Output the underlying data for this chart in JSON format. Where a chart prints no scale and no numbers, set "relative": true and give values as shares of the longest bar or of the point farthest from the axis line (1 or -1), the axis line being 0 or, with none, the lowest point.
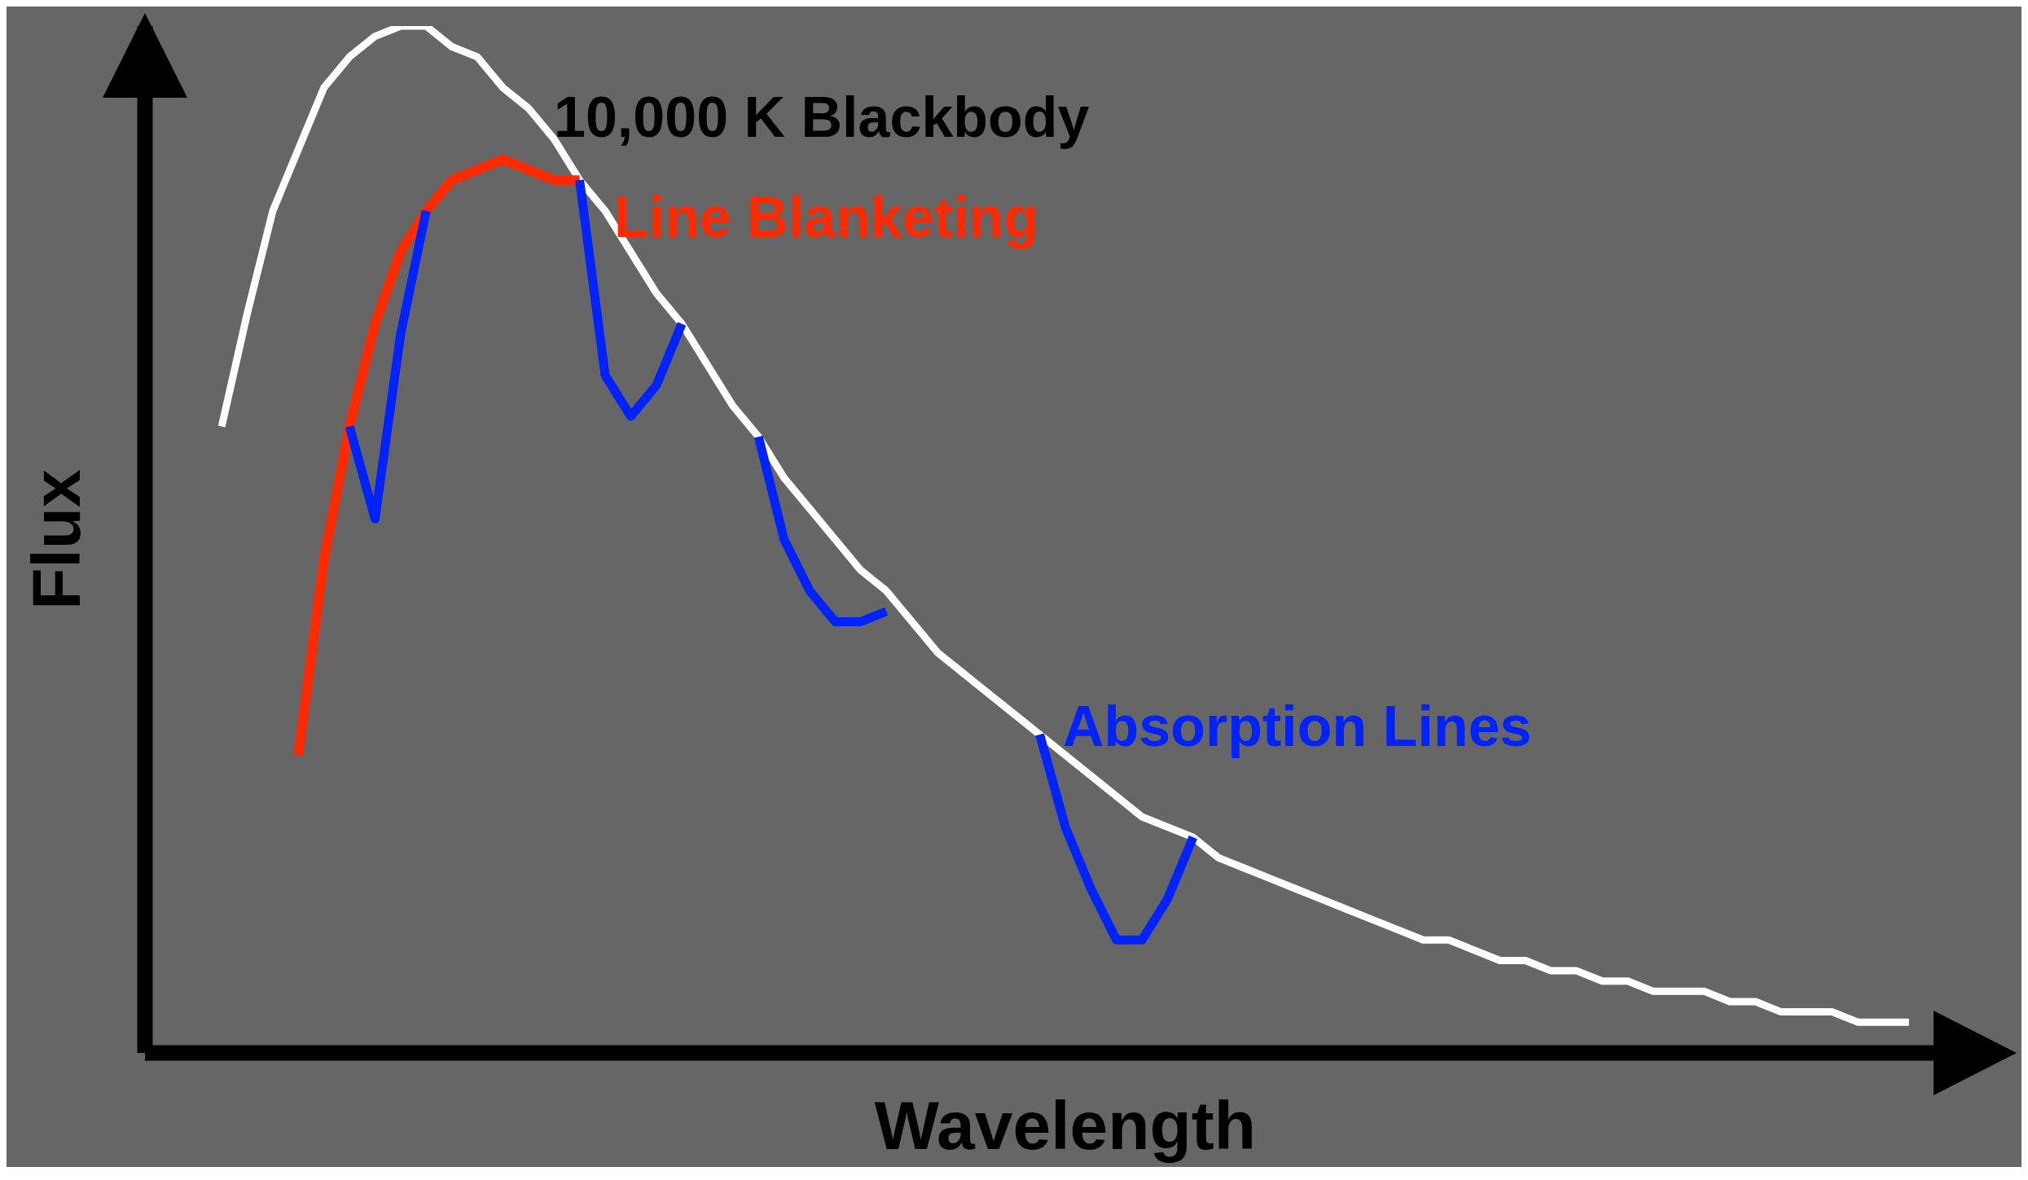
{
  "chart_data": {
    "type": "line",
    "relative": true,
    "xlabel": "Wavelength",
    "ylabel": "Flux",
    "legend": false,
    "grid": false,
    "marker": "none",
    "line_style": "solid",
    "categories": [
      null,
      null,
      null,
      null,
      null,
      null,
      null,
      null,
      null,
      null,
      null,
      null,
      null,
      null,
      null,
      null,
      null,
      null,
      null,
      null,
      null,
      null,
      null,
      null,
      null,
      null,
      null,
      null,
      null,
      null,
      null,
      null,
      null,
      null,
      null,
      null,
      null,
      null,
      null,
      null,
      null,
      null,
      null,
      null,
      null,
      null,
      null,
      null,
      null,
      null,
      null,
      null,
      null,
      null,
      null,
      null,
      null,
      null,
      null,
      null,
      null,
      null,
      null,
      null,
      null,
      null,
      null,
      null,
      null,
      null,
      null,
      null,
      null
    ],
    "series": [
      {
        "name": "10,000 K Blackbody",
        "color": "#ffffff",
        "values": [
          null,
          null,
          null,
          0.61,
          0.72,
          0.82,
          0.88,
          0.94,
          0.97,
          0.99,
          1.0,
          1.0,
          0.98,
          0.97,
          0.94,
          0.92,
          0.89,
          0.85,
          0.82,
          0.78,
          0.74,
          0.71,
          0.67,
          0.63,
          0.6,
          0.56,
          0.53,
          0.5,
          0.47,
          0.45,
          0.42,
          0.39,
          0.37,
          0.35,
          0.33,
          0.31,
          0.29,
          0.27,
          0.25,
          0.23,
          0.22,
          0.21,
          0.19,
          0.18,
          0.17,
          0.16,
          0.15,
          0.14,
          0.13,
          0.12,
          0.11,
          0.11,
          0.1,
          0.09,
          0.09,
          0.08,
          0.08,
          0.07,
          0.07,
          0.06,
          0.06,
          0.06,
          0.05,
          0.05,
          0.04,
          0.04,
          0.04,
          0.03,
          0.03,
          0.03,
          null,
          null,
          null
        ]
      },
      {
        "name": "Line Blanketing",
        "color": "#ff2a00",
        "values": [
          null,
          null,
          null,
          null,
          null,
          null,
          0.29,
          0.48,
          0.61,
          0.71,
          0.78,
          0.82,
          0.85,
          0.86,
          0.87,
          0.86,
          0.85,
          0.85,
          null,
          null,
          null,
          null,
          null,
          null,
          null,
          null,
          null,
          null,
          null,
          null,
          null,
          null,
          null,
          null,
          null,
          null,
          null,
          null,
          null,
          null,
          null,
          null,
          null,
          null,
          null,
          null,
          null,
          null,
          null,
          null,
          null,
          null,
          null,
          null,
          null,
          null,
          null,
          null,
          null,
          null,
          null,
          null,
          null,
          null,
          null,
          null,
          null,
          null,
          null,
          null,
          null,
          null,
          null
        ]
      },
      {
        "name": "Absorption Lines",
        "color": "#0022ff",
        "values": [
          null,
          null,
          null,
          null,
          null,
          null,
          null,
          null,
          0.61,
          0.52,
          0.7,
          0.82,
          null,
          null,
          null,
          null,
          null,
          0.85,
          0.66,
          0.62,
          0.65,
          0.71,
          null,
          null,
          0.6,
          0.5,
          0.45,
          0.42,
          0.42,
          0.43,
          null,
          null,
          null,
          null,
          null,
          0.31,
          0.22,
          0.16,
          0.11,
          0.11,
          0.15,
          0.21,
          null,
          null,
          null,
          null,
          null,
          null,
          null,
          null,
          null,
          null,
          null,
          null,
          null,
          null,
          null,
          null,
          null,
          null,
          null,
          null,
          null,
          null,
          null,
          null,
          null,
          null,
          null,
          null,
          null,
          null,
          null
        ]
      }
    ]
  }
}
